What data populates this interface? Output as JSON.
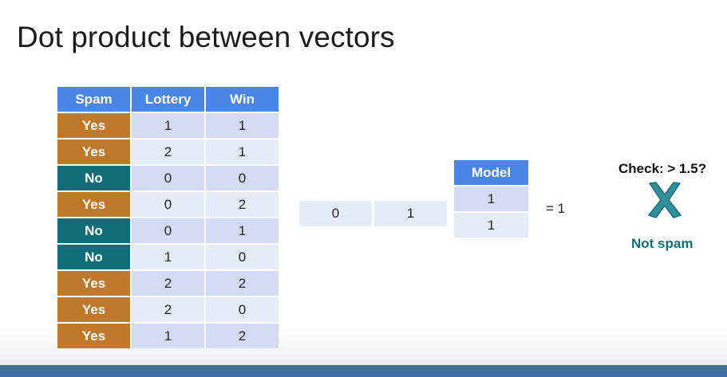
{
  "slide": {
    "title": "Dot product between vectors"
  },
  "table": {
    "headers": [
      "Spam",
      "Lottery",
      "Win"
    ],
    "rows": [
      {
        "spam": "Yes",
        "lottery": "1",
        "win": "1"
      },
      {
        "spam": "Yes",
        "lottery": "2",
        "win": "1"
      },
      {
        "spam": "No",
        "lottery": "0",
        "win": "0"
      },
      {
        "spam": "Yes",
        "lottery": "0",
        "win": "2"
      },
      {
        "spam": "No",
        "lottery": "0",
        "win": "1"
      },
      {
        "spam": "No",
        "lottery": "1",
        "win": "0"
      },
      {
        "spam": "Yes",
        "lottery": "2",
        "win": "2"
      },
      {
        "spam": "Yes",
        "lottery": "2",
        "win": "0"
      },
      {
        "spam": "Yes",
        "lottery": "1",
        "win": "2"
      }
    ]
  },
  "vector": [
    "0",
    "1"
  ],
  "model": {
    "header": "Model",
    "weights": [
      "1",
      "1"
    ]
  },
  "result": {
    "equals_text": "=  1"
  },
  "check": {
    "label": "Check: > 1.5?",
    "icon": "cross-icon",
    "verdict": "Not spam"
  },
  "colors": {
    "header_blue": "#4a86e8",
    "yes_orange": "#c0792b",
    "no_teal": "#116e76",
    "row_dark": "#d3dcf4",
    "row_light": "#e6ebf8",
    "cross_teal": "#2f8f9a",
    "bottom_bar": "#3e6ea3"
  }
}
